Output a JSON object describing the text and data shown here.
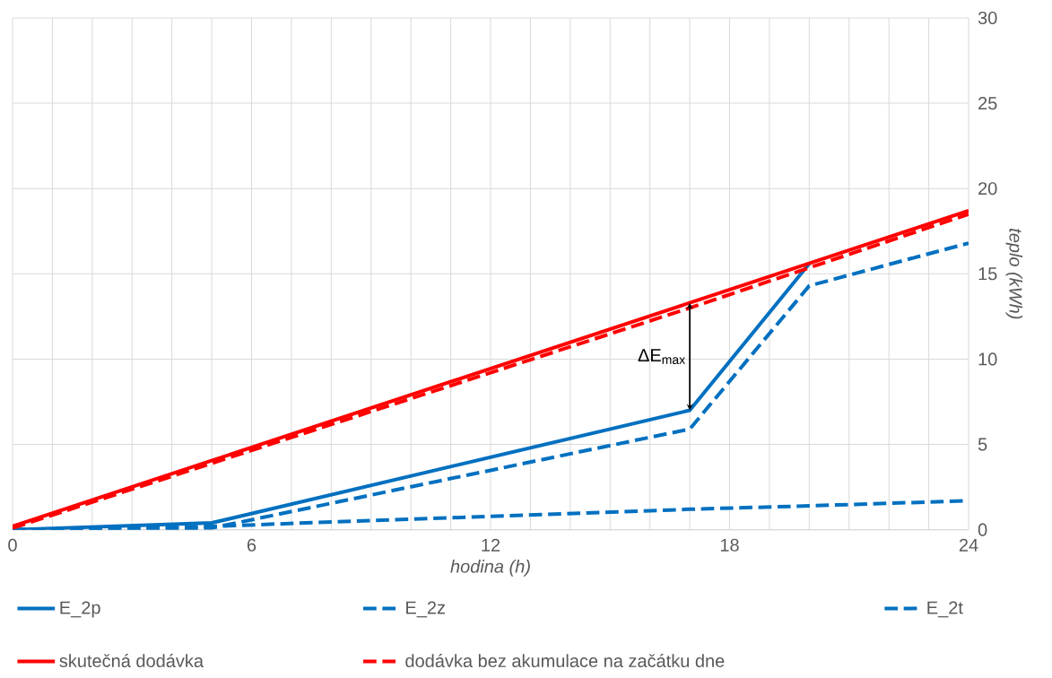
{
  "chart_data": {
    "type": "line",
    "xlabel": "hodina (h)",
    "ylabel": "teplo (kWh)",
    "xlim": [
      0,
      24
    ],
    "ylim": [
      0,
      30
    ],
    "xticks": [
      0,
      {
        "value": 1,
        "label": null
      },
      {
        "value": 2,
        "label": null
      },
      {
        "value": 3,
        "label": null
      },
      {
        "value": 4,
        "label": null
      },
      {
        "value": 5,
        "label": null
      },
      6,
      {
        "value": 7,
        "label": null
      },
      {
        "value": 8,
        "label": null
      },
      {
        "value": 9,
        "label": null
      },
      {
        "value": 10,
        "label": null
      },
      {
        "value": 11,
        "label": null
      },
      12,
      {
        "value": 13,
        "label": null
      },
      {
        "value": 14,
        "label": null
      },
      {
        "value": 15,
        "label": null
      },
      {
        "value": 16,
        "label": null
      },
      {
        "value": 17,
        "label": null
      },
      18,
      {
        "value": 19,
        "label": null
      },
      {
        "value": 20,
        "label": null
      },
      {
        "value": 21,
        "label": null
      },
      {
        "value": 22,
        "label": null
      },
      {
        "value": 23,
        "label": null
      },
      24
    ],
    "yticks": [
      0,
      5,
      10,
      15,
      20,
      25,
      30
    ],
    "grid": true,
    "legend": "bottom",
    "marker": "none",
    "series": [
      {
        "name": "E_2p",
        "color": "#0070c0",
        "line_style": "solid",
        "x": [
          0,
          5,
          17,
          20
        ],
        "values": [
          0,
          0.4,
          7.0,
          15.6
        ]
      },
      {
        "name": "E_2z",
        "color": "#0070c0",
        "line_style": "dashed",
        "x": [
          0,
          5,
          17,
          20,
          24
        ],
        "values": [
          0,
          0.2,
          1.2,
          1.4,
          1.7
        ]
      },
      {
        "name": "E_2t",
        "color": "#0070c0",
        "line_style": "dashed",
        "x": [
          0,
          5,
          17,
          20,
          24
        ],
        "values": [
          0,
          0.1,
          5.9,
          14.3,
          16.8
        ]
      },
      {
        "name": "skutečná dodávka",
        "color": "#ff0000",
        "line_style": "solid",
        "x": [
          0,
          17,
          24
        ],
        "values": [
          0.2,
          13.3,
          18.7
        ]
      },
      {
        "name": "dodávka bez akumulace na začátku dne",
        "color": "#ff0000",
        "line_style": "dashed",
        "x": [
          0,
          17,
          24
        ],
        "values": [
          0.1,
          13.0,
          18.5
        ]
      }
    ],
    "annotations": [
      {
        "text": "ΔE$_{max}$",
        "x": 17,
        "y": 7.0
      }
    ]
  }
}
